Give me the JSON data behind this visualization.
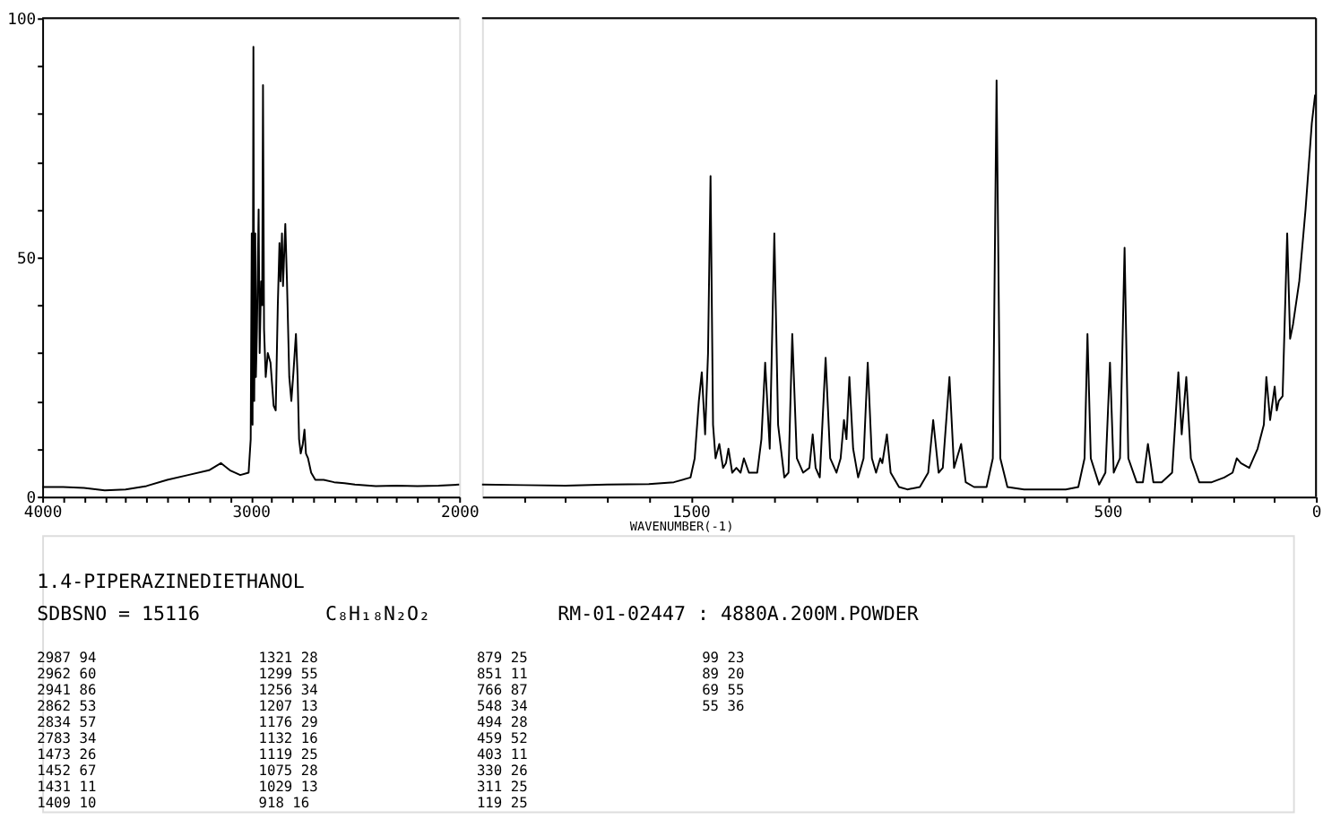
{
  "chart_data": [
    {
      "type": "line",
      "xlim": [
        4000,
        2000
      ],
      "ylim": [
        0,
        100
      ],
      "xticks": [
        4000,
        {
          "value": 3900,
          "label": null
        },
        {
          "value": 3800,
          "label": null
        },
        {
          "value": 3700,
          "label": null
        },
        {
          "value": 3600,
          "label": null
        },
        {
          "value": 3500,
          "label": null
        },
        {
          "value": 3400,
          "label": null
        },
        {
          "value": 3300,
          "label": null
        },
        {
          "value": 3200,
          "label": null
        },
        {
          "value": 3100,
          "label": null
        },
        3000,
        {
          "value": 2900,
          "label": null
        },
        {
          "value": 2800,
          "label": null
        },
        {
          "value": 2700,
          "label": null
        },
        {
          "value": 2600,
          "label": null
        },
        {
          "value": 2500,
          "label": null
        },
        {
          "value": 2400,
          "label": null
        },
        {
          "value": 2300,
          "label": null
        },
        {
          "value": 2200,
          "label": null
        },
        {
          "value": 2100,
          "label": null
        },
        2000
      ],
      "yticks": [
        0,
        {
          "value": 10,
          "label": null
        },
        {
          "value": 20,
          "label": null
        },
        {
          "value": 30,
          "label": null
        },
        {
          "value": 40,
          "label": null
        },
        50,
        {
          "value": 60,
          "label": null
        },
        {
          "value": 70,
          "label": null
        },
        {
          "value": 80,
          "label": null
        },
        {
          "value": 90,
          "label": null
        },
        100
      ],
      "grid": false,
      "line_style": "solid",
      "marker": "none",
      "series": [
        {
          "color": "#000000",
          "x": [
            4000,
            3900,
            3800,
            3700,
            3600,
            3500,
            3400,
            3300,
            3200,
            3143,
            3100,
            3050,
            3010,
            3000,
            2995,
            2991,
            2987,
            2983,
            2978,
            2975,
            2970,
            2962,
            2957,
            2950,
            2945,
            2941,
            2936,
            2928,
            2918,
            2905,
            2890,
            2880,
            2870,
            2862,
            2857,
            2850,
            2845,
            2834,
            2826,
            2815,
            2805,
            2795,
            2783,
            2775,
            2768,
            2760,
            2750,
            2742,
            2735,
            2725,
            2710,
            2690,
            2650,
            2600,
            2550,
            2500,
            2400,
            2300,
            2200,
            2100,
            2000
          ],
          "values": [
            2,
            2,
            1.8,
            1.3,
            1.5,
            2.2,
            3.5,
            4.5,
            5.5,
            7,
            5.5,
            4.5,
            5,
            12,
            55,
            15,
            94,
            20,
            55,
            25,
            35,
            60,
            30,
            45,
            40,
            86,
            35,
            25,
            30,
            28,
            19,
            18,
            40,
            53,
            45,
            55,
            44,
            57,
            45,
            25,
            20,
            26,
            34,
            25,
            12,
            9,
            11,
            14,
            9,
            8,
            5,
            3.5,
            3.5,
            3,
            2.8,
            2.5,
            2.2,
            2.3,
            2.2,
            2.3,
            2.5
          ]
        }
      ]
    },
    {
      "type": "line",
      "xlabel": "WAVENUMBER(-1)",
      "xlim": [
        2000,
        0
      ],
      "ylim": [
        0,
        100
      ],
      "xticks": [
        {
          "value": 1900,
          "label": null
        },
        {
          "value": 1800,
          "label": null
        },
        {
          "value": 1700,
          "label": null
        },
        {
          "value": 1600,
          "label": null
        },
        1500,
        {
          "value": 1400,
          "label": null
        },
        {
          "value": 1300,
          "label": null
        },
        {
          "value": 1200,
          "label": null
        },
        {
          "value": 1100,
          "label": null
        },
        {
          "value": 1000,
          "label": null
        },
        {
          "value": 900,
          "label": null
        },
        {
          "value": 800,
          "label": null
        },
        {
          "value": 700,
          "label": null
        },
        {
          "value": 600,
          "label": null
        },
        500,
        {
          "value": 400,
          "label": null
        },
        {
          "value": 300,
          "label": null
        },
        {
          "value": 200,
          "label": null
        },
        {
          "value": 100,
          "label": null
        },
        0
      ],
      "tick_labels": "x",
      "grid": false,
      "line_style": "solid",
      "marker": "none",
      "series": [
        {
          "color": "#000000",
          "x": [
            2000,
            1900,
            1800,
            1700,
            1600,
            1540,
            1500,
            1490,
            1480,
            1473,
            1465,
            1458,
            1452,
            1446,
            1440,
            1431,
            1422,
            1415,
            1409,
            1400,
            1390,
            1380,
            1372,
            1360,
            1340,
            1330,
            1321,
            1310,
            1299,
            1290,
            1275,
            1265,
            1256,
            1245,
            1230,
            1215,
            1207,
            1200,
            1190,
            1176,
            1165,
            1150,
            1140,
            1132,
            1126,
            1119,
            1110,
            1098,
            1085,
            1075,
            1065,
            1055,
            1045,
            1040,
            1029,
            1020,
            1000,
            980,
            950,
            930,
            918,
            905,
            895,
            879,
            868,
            851,
            840,
            820,
            790,
            775,
            766,
            757,
            740,
            700,
            650,
            600,
            570,
            555,
            548,
            540,
            520,
            505,
            494,
            485,
            470,
            459,
            450,
            430,
            415,
            403,
            390,
            370,
            345,
            330,
            322,
            311,
            300,
            280,
            250,
            220,
            200,
            190,
            180,
            160,
            140,
            125,
            119,
            110,
            99,
            94,
            89,
            80,
            69,
            62,
            55,
            40,
            25,
            10,
            2
          ],
          "values": [
            2.5,
            2.4,
            2.3,
            2.5,
            2.6,
            3,
            4,
            8,
            20,
            26,
            13,
            30,
            67,
            15,
            8,
            11,
            6,
            7,
            10,
            5,
            6,
            5,
            8,
            5,
            5,
            12,
            28,
            10,
            55,
            15,
            4,
            5,
            34,
            8,
            5,
            6,
            13,
            6,
            4,
            29,
            8,
            5,
            8,
            16,
            12,
            25,
            10,
            4,
            8,
            28,
            8,
            5,
            8,
            7,
            13,
            5,
            2,
            1.5,
            2,
            5,
            16,
            5,
            6,
            25,
            6,
            11,
            3,
            2,
            2,
            8,
            87,
            8,
            2,
            1.5,
            1.5,
            1.5,
            2,
            8,
            34,
            8,
            2.5,
            5,
            28,
            5,
            8,
            52,
            8,
            3,
            3,
            11,
            3,
            3,
            5,
            26,
            13,
            25,
            8,
            3,
            3,
            4,
            5,
            8,
            7,
            6,
            10,
            15,
            25,
            16,
            23,
            18,
            20,
            21,
            55,
            33,
            36,
            45,
            60,
            78,
            84
          ]
        }
      ]
    },
    {
      "type": "other",
      "title": "1.4-PIPERAZINEDIETHANOL",
      "annotations": [
        "SDBSNO = 15116",
        "C₈H₁₈N₂O₂",
        "RM-01-02447 : 4880A.200M.POWDER",
        "2987 94",
        "2962 60",
        "2941 86",
        "2862 53",
        "2834 57",
        "2783 34",
        "1473 26",
        "1452 67",
        "1431 11",
        "1409 10",
        "1321 28",
        "1299 55",
        "1256 34",
        "1207 13",
        "1176 29",
        "1132 16",
        "1119 25",
        "1075 28",
        "1029 13",
        "918 16",
        "879 25",
        "851 11",
        "766 87",
        "548 34",
        "494 28",
        "459 52",
        "403 11",
        "330 26",
        "311 25",
        "119 25",
        "99 23",
        "89 20",
        "69 55",
        "55 36"
      ]
    }
  ]
}
